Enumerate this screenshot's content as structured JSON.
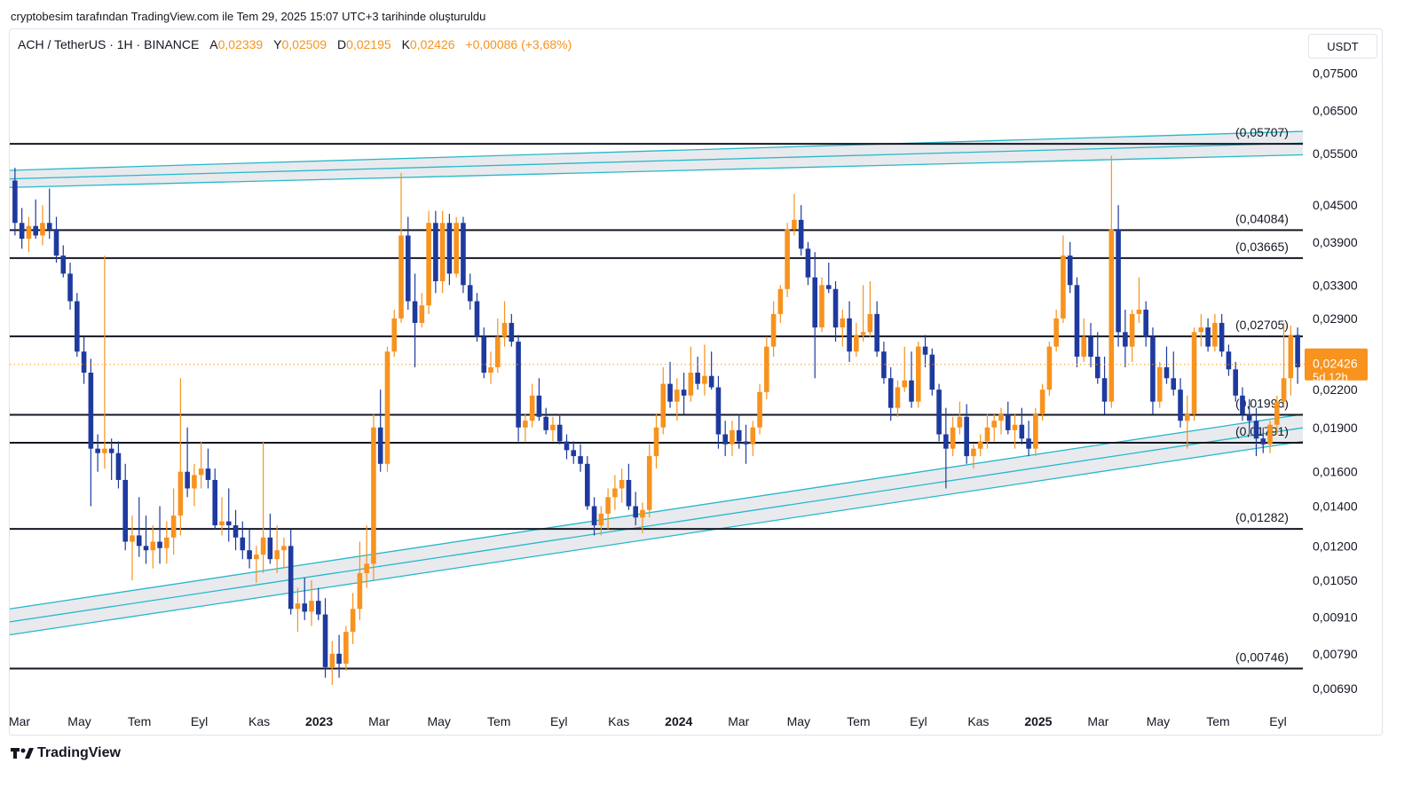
{
  "header": {
    "caption": "cryptobesim tarafından TradingView.com ile Tem 29, 2025 15:07 UTC+3 tarihinde oluşturuldu"
  },
  "legend": {
    "symbol": "ACH / TetherUS · 1H · BINANCE",
    "open_label": "A",
    "open": "0,02339",
    "high_label": "Y",
    "high": "0,02509",
    "low_label": "D",
    "low": "0,02195",
    "close_label": "K",
    "close": "0,02426",
    "change": "+0,00086 (+3,68%)"
  },
  "toolbar": {
    "currency": "USDT"
  },
  "brand": {
    "name": "TradingView"
  },
  "colors": {
    "bullish": "#f7931e",
    "bearish": "#1e3a9e",
    "channel": "#26b8c9",
    "channel_fill": "#e6e8ec",
    "level": "#131722",
    "last_price": "#f7931e"
  },
  "chart_data": {
    "type": "candlestick",
    "scale": "log",
    "ylim": [
      0.0064,
      0.089
    ],
    "y_ticks": [
      "0,07500",
      "0,06500",
      "0,05500",
      "0,04500",
      "0,03900",
      "0,03300",
      "0,02900",
      "0,02500",
      "0,02200",
      "0,01900",
      "0,01600",
      "0,01400",
      "0,01200",
      "0,01050",
      "0,00910",
      "0,00790",
      "0,00690"
    ],
    "y_values": [
      0.075,
      0.065,
      0.055,
      0.045,
      0.039,
      0.033,
      0.029,
      0.025,
      0.022,
      0.019,
      0.016,
      0.014,
      0.012,
      0.0105,
      0.0091,
      0.0079,
      0.0069
    ],
    "x_ticks": [
      {
        "label": "Mar",
        "bold": false
      },
      {
        "label": "May",
        "bold": false
      },
      {
        "label": "Tem",
        "bold": false
      },
      {
        "label": "Eyl",
        "bold": false
      },
      {
        "label": "Kas",
        "bold": false
      },
      {
        "label": "2023",
        "bold": true
      },
      {
        "label": "Mar",
        "bold": false
      },
      {
        "label": "May",
        "bold": false
      },
      {
        "label": "Tem",
        "bold": false
      },
      {
        "label": "Eyl",
        "bold": false
      },
      {
        "label": "Kas",
        "bold": false
      },
      {
        "label": "2024",
        "bold": true
      },
      {
        "label": "Mar",
        "bold": false
      },
      {
        "label": "May",
        "bold": false
      },
      {
        "label": "Tem",
        "bold": false
      },
      {
        "label": "Eyl",
        "bold": false
      },
      {
        "label": "Kas",
        "bold": false
      },
      {
        "label": "2025",
        "bold": true
      },
      {
        "label": "Mar",
        "bold": false
      },
      {
        "label": "May",
        "bold": false
      },
      {
        "label": "Tem",
        "bold": false
      },
      {
        "label": "Eyl",
        "bold": false
      }
    ],
    "levels": [
      {
        "label": "(0,05707)",
        "value": 0.05707
      },
      {
        "label": "(0,04084)",
        "value": 0.04084
      },
      {
        "label": "(0,03665)",
        "value": 0.03665
      },
      {
        "label": "(0,02705)",
        "value": 0.02705
      },
      {
        "label": "(0,01996)",
        "value": 0.01996
      },
      {
        "label": "(0,01791)",
        "value": 0.01791
      },
      {
        "label": "(0,01282)",
        "value": 0.01282
      },
      {
        "label": "(0,00746)",
        "value": 0.00746
      }
    ],
    "channels": [
      {
        "name": "upper",
        "start": [
          0.0482,
          0.0515
        ],
        "end": [
          0.0547,
          0.0599
        ]
      },
      {
        "name": "lower",
        "start": [
          0.0085,
          0.0094
        ],
        "end": [
          0.018,
          0.02
        ]
      }
    ],
    "last_price": {
      "value": 0.02426,
      "label": "0,02426",
      "countdown": "5d 12h"
    },
    "candles": [
      [
        0.0495,
        0.052,
        0.04,
        0.042
      ],
      [
        0.042,
        0.0445,
        0.038,
        0.0395
      ],
      [
        0.0395,
        0.043,
        0.0375,
        0.0415
      ],
      [
        0.0415,
        0.046,
        0.0395,
        0.04
      ],
      [
        0.04,
        0.045,
        0.0385,
        0.042
      ],
      [
        0.042,
        0.048,
        0.0395,
        0.041
      ],
      [
        0.041,
        0.043,
        0.036,
        0.037
      ],
      [
        0.037,
        0.0385,
        0.034,
        0.0345
      ],
      [
        0.0345,
        0.036,
        0.03,
        0.031
      ],
      [
        0.031,
        0.032,
        0.025,
        0.0255
      ],
      [
        0.0255,
        0.027,
        0.0225,
        0.0235
      ],
      [
        0.0235,
        0.0248,
        0.014,
        0.0175
      ],
      [
        0.0175,
        0.0185,
        0.016,
        0.0172
      ],
      [
        0.0172,
        0.037,
        0.0162,
        0.0175
      ],
      [
        0.0175,
        0.0182,
        0.0155,
        0.0172
      ],
      [
        0.0172,
        0.018,
        0.015,
        0.0155
      ],
      [
        0.0155,
        0.0165,
        0.0118,
        0.0122
      ],
      [
        0.0122,
        0.0135,
        0.0105,
        0.0125
      ],
      [
        0.0125,
        0.0145,
        0.0115,
        0.012
      ],
      [
        0.012,
        0.0135,
        0.0112,
        0.0118
      ],
      [
        0.0118,
        0.013,
        0.011,
        0.0122
      ],
      [
        0.0122,
        0.014,
        0.0112,
        0.0119
      ],
      [
        0.0119,
        0.0132,
        0.0112,
        0.0124
      ],
      [
        0.0124,
        0.015,
        0.0116,
        0.0135
      ],
      [
        0.0135,
        0.023,
        0.0125,
        0.016
      ],
      [
        0.016,
        0.019,
        0.0145,
        0.015
      ],
      [
        0.015,
        0.0165,
        0.014,
        0.0158
      ],
      [
        0.0158,
        0.018,
        0.015,
        0.0162
      ],
      [
        0.0162,
        0.0175,
        0.015,
        0.0155
      ],
      [
        0.0155,
        0.0162,
        0.0128,
        0.013
      ],
      [
        0.013,
        0.0145,
        0.0125,
        0.0132
      ],
      [
        0.0132,
        0.015,
        0.0122,
        0.013
      ],
      [
        0.013,
        0.0138,
        0.0118,
        0.0124
      ],
      [
        0.0124,
        0.0132,
        0.0114,
        0.0118
      ],
      [
        0.0118,
        0.0128,
        0.011,
        0.0114
      ],
      [
        0.0114,
        0.012,
        0.0104,
        0.0116
      ],
      [
        0.0116,
        0.018,
        0.0108,
        0.0124
      ],
      [
        0.0124,
        0.0136,
        0.0112,
        0.0114
      ],
      [
        0.0114,
        0.013,
        0.0108,
        0.0118
      ],
      [
        0.0118,
        0.0124,
        0.011,
        0.012
      ],
      [
        0.012,
        0.0128,
        0.0092,
        0.0094
      ],
      [
        0.0094,
        0.0102,
        0.0086,
        0.0096
      ],
      [
        0.0096,
        0.0106,
        0.009,
        0.0093
      ],
      [
        0.0093,
        0.0105,
        0.0088,
        0.0097
      ],
      [
        0.0097,
        0.0102,
        0.009,
        0.0092
      ],
      [
        0.0092,
        0.0098,
        0.0072,
        0.0075
      ],
      [
        0.0075,
        0.0083,
        0.007,
        0.0079
      ],
      [
        0.0079,
        0.0085,
        0.0072,
        0.0076
      ],
      [
        0.0076,
        0.0088,
        0.0074,
        0.0086
      ],
      [
        0.0086,
        0.01,
        0.0082,
        0.0094
      ],
      [
        0.0094,
        0.0122,
        0.009,
        0.0108
      ],
      [
        0.0108,
        0.013,
        0.0102,
        0.0112
      ],
      [
        0.0112,
        0.02,
        0.0105,
        0.019
      ],
      [
        0.019,
        0.022,
        0.016,
        0.0165
      ],
      [
        0.0165,
        0.026,
        0.016,
        0.0255
      ],
      [
        0.0255,
        0.03,
        0.025,
        0.029
      ],
      [
        0.029,
        0.051,
        0.0285,
        0.04
      ],
      [
        0.04,
        0.043,
        0.03,
        0.031
      ],
      [
        0.031,
        0.0345,
        0.024,
        0.0285
      ],
      [
        0.0285,
        0.032,
        0.028,
        0.0305
      ],
      [
        0.0305,
        0.044,
        0.0295,
        0.042
      ],
      [
        0.042,
        0.044,
        0.032,
        0.0335
      ],
      [
        0.0335,
        0.044,
        0.032,
        0.042
      ],
      [
        0.042,
        0.0435,
        0.033,
        0.0345
      ],
      [
        0.0345,
        0.043,
        0.034,
        0.042
      ],
      [
        0.042,
        0.043,
        0.032,
        0.033
      ],
      [
        0.033,
        0.0345,
        0.03,
        0.031
      ],
      [
        0.031,
        0.032,
        0.0265,
        0.027
      ],
      [
        0.027,
        0.028,
        0.023,
        0.0235
      ],
      [
        0.0235,
        0.0255,
        0.0225,
        0.024
      ],
      [
        0.024,
        0.029,
        0.0235,
        0.027
      ],
      [
        0.027,
        0.031,
        0.026,
        0.0285
      ],
      [
        0.0285,
        0.0295,
        0.026,
        0.0265
      ],
      [
        0.0265,
        0.0272,
        0.018,
        0.019
      ],
      [
        0.019,
        0.02,
        0.018,
        0.0195
      ],
      [
        0.0195,
        0.0225,
        0.019,
        0.0215
      ],
      [
        0.0215,
        0.023,
        0.0195,
        0.0198
      ],
      [
        0.0198,
        0.0205,
        0.0185,
        0.0188
      ],
      [
        0.0188,
        0.0198,
        0.018,
        0.0192
      ],
      [
        0.0192,
        0.02,
        0.0178,
        0.018
      ],
      [
        0.018,
        0.0185,
        0.0168,
        0.0174
      ],
      [
        0.0174,
        0.018,
        0.0165,
        0.017
      ],
      [
        0.017,
        0.0178,
        0.016,
        0.0165
      ],
      [
        0.0165,
        0.017,
        0.0138,
        0.014
      ],
      [
        0.014,
        0.0145,
        0.0125,
        0.013
      ],
      [
        0.013,
        0.014,
        0.0125,
        0.0136
      ],
      [
        0.0136,
        0.015,
        0.0128,
        0.0145
      ],
      [
        0.0145,
        0.0158,
        0.0138,
        0.015
      ],
      [
        0.015,
        0.0162,
        0.0142,
        0.0155
      ],
      [
        0.0155,
        0.0165,
        0.0138,
        0.014
      ],
      [
        0.014,
        0.0148,
        0.013,
        0.0134
      ],
      [
        0.0134,
        0.0142,
        0.0126,
        0.0138
      ],
      [
        0.0138,
        0.0178,
        0.0134,
        0.017
      ],
      [
        0.017,
        0.02,
        0.0162,
        0.019
      ],
      [
        0.019,
        0.024,
        0.0185,
        0.0225
      ],
      [
        0.0225,
        0.0245,
        0.0205,
        0.021
      ],
      [
        0.021,
        0.023,
        0.0195,
        0.022
      ],
      [
        0.022,
        0.0235,
        0.02,
        0.0215
      ],
      [
        0.0215,
        0.026,
        0.021,
        0.0235
      ],
      [
        0.0235,
        0.025,
        0.022,
        0.0225
      ],
      [
        0.0225,
        0.0262,
        0.0215,
        0.0232
      ],
      [
        0.0232,
        0.0255,
        0.022,
        0.0222
      ],
      [
        0.0222,
        0.0232,
        0.0175,
        0.0185
      ],
      [
        0.0185,
        0.0195,
        0.017,
        0.0178
      ],
      [
        0.0178,
        0.0195,
        0.017,
        0.0188
      ],
      [
        0.0188,
        0.02,
        0.0175,
        0.018
      ],
      [
        0.018,
        0.0192,
        0.0165,
        0.0178
      ],
      [
        0.0178,
        0.0195,
        0.017,
        0.019
      ],
      [
        0.019,
        0.0225,
        0.0185,
        0.0218
      ],
      [
        0.0218,
        0.027,
        0.0212,
        0.026
      ],
      [
        0.026,
        0.031,
        0.025,
        0.0295
      ],
      [
        0.0295,
        0.033,
        0.0285,
        0.0325
      ],
      [
        0.0325,
        0.042,
        0.0315,
        0.041
      ],
      [
        0.041,
        0.047,
        0.04,
        0.0425
      ],
      [
        0.0425,
        0.045,
        0.037,
        0.038
      ],
      [
        0.038,
        0.039,
        0.033,
        0.034
      ],
      [
        0.034,
        0.0375,
        0.023,
        0.028
      ],
      [
        0.028,
        0.034,
        0.0275,
        0.033
      ],
      [
        0.033,
        0.036,
        0.032,
        0.0325
      ],
      [
        0.0325,
        0.0335,
        0.0265,
        0.028
      ],
      [
        0.028,
        0.03,
        0.026,
        0.029
      ],
      [
        0.029,
        0.031,
        0.0245,
        0.0255
      ],
      [
        0.0255,
        0.0285,
        0.025,
        0.0272
      ],
      [
        0.0272,
        0.033,
        0.0265,
        0.0275
      ],
      [
        0.0275,
        0.0335,
        0.027,
        0.0295
      ],
      [
        0.0295,
        0.031,
        0.025,
        0.0255
      ],
      [
        0.0255,
        0.0265,
        0.0225,
        0.023
      ],
      [
        0.023,
        0.024,
        0.0195,
        0.0205
      ],
      [
        0.0205,
        0.0228,
        0.0198,
        0.0222
      ],
      [
        0.0222,
        0.026,
        0.0218,
        0.0228
      ],
      [
        0.0228,
        0.0255,
        0.0205,
        0.021
      ],
      [
        0.021,
        0.0265,
        0.0205,
        0.026
      ],
      [
        0.026,
        0.0272,
        0.024,
        0.0252
      ],
      [
        0.0252,
        0.0258,
        0.0215,
        0.022
      ],
      [
        0.022,
        0.0225,
        0.018,
        0.0185
      ],
      [
        0.0185,
        0.0205,
        0.015,
        0.0175
      ],
      [
        0.0175,
        0.0198,
        0.017,
        0.019
      ],
      [
        0.019,
        0.021,
        0.0185,
        0.0198
      ],
      [
        0.0198,
        0.0208,
        0.0165,
        0.017
      ],
      [
        0.017,
        0.0178,
        0.0162,
        0.0175
      ],
      [
        0.0175,
        0.0185,
        0.017,
        0.018
      ],
      [
        0.018,
        0.02,
        0.0175,
        0.019
      ],
      [
        0.019,
        0.02,
        0.018,
        0.0195
      ],
      [
        0.0195,
        0.0205,
        0.0185,
        0.02
      ],
      [
        0.02,
        0.021,
        0.0185,
        0.0188
      ],
      [
        0.0188,
        0.02,
        0.0175,
        0.0192
      ],
      [
        0.0192,
        0.0205,
        0.0178,
        0.0182
      ],
      [
        0.0182,
        0.0195,
        0.017,
        0.0175
      ],
      [
        0.0175,
        0.0205,
        0.017,
        0.02
      ],
      [
        0.02,
        0.0225,
        0.0195,
        0.022
      ],
      [
        0.022,
        0.0265,
        0.0215,
        0.026
      ],
      [
        0.026,
        0.03,
        0.0255,
        0.029
      ],
      [
        0.029,
        0.04,
        0.0285,
        0.037
      ],
      [
        0.037,
        0.039,
        0.032,
        0.033
      ],
      [
        0.033,
        0.034,
        0.024,
        0.025
      ],
      [
        0.025,
        0.029,
        0.0245,
        0.027
      ],
      [
        0.027,
        0.0285,
        0.024,
        0.025
      ],
      [
        0.025,
        0.0275,
        0.0225,
        0.023
      ],
      [
        0.023,
        0.025,
        0.02,
        0.021
      ],
      [
        0.021,
        0.0545,
        0.0205,
        0.041
      ],
      [
        0.041,
        0.045,
        0.026,
        0.0275
      ],
      [
        0.0275,
        0.03,
        0.024,
        0.026
      ],
      [
        0.026,
        0.03,
        0.0245,
        0.0295
      ],
      [
        0.0295,
        0.034,
        0.0285,
        0.03
      ],
      [
        0.03,
        0.031,
        0.026,
        0.027
      ],
      [
        0.027,
        0.028,
        0.02,
        0.021
      ],
      [
        0.021,
        0.0245,
        0.0205,
        0.024
      ],
      [
        0.024,
        0.026,
        0.0225,
        0.023
      ],
      [
        0.023,
        0.0255,
        0.0215,
        0.022
      ],
      [
        0.022,
        0.023,
        0.019,
        0.0195
      ],
      [
        0.0195,
        0.0215,
        0.0175,
        0.02
      ],
      [
        0.02,
        0.028,
        0.0195,
        0.0275
      ],
      [
        0.0275,
        0.0295,
        0.026,
        0.028
      ],
      [
        0.028,
        0.029,
        0.0255,
        0.026
      ],
      [
        0.026,
        0.0295,
        0.0255,
        0.0285
      ],
      [
        0.0285,
        0.0295,
        0.025,
        0.0255
      ],
      [
        0.0255,
        0.0262,
        0.0232,
        0.0238
      ],
      [
        0.0238,
        0.0245,
        0.021,
        0.0215
      ],
      [
        0.0215,
        0.0222,
        0.0195,
        0.02
      ],
      [
        0.02,
        0.0212,
        0.0185,
        0.0195
      ],
      [
        0.0195,
        0.0205,
        0.017,
        0.0182
      ],
      [
        0.0182,
        0.019,
        0.0172,
        0.0178
      ],
      [
        0.0178,
        0.0195,
        0.0172,
        0.0192
      ],
      [
        0.0192,
        0.0215,
        0.0185,
        0.021
      ],
      [
        0.021,
        0.0285,
        0.0205,
        0.023
      ],
      [
        0.023,
        0.0282,
        0.0215,
        0.0272
      ],
      [
        0.0272,
        0.028,
        0.0225,
        0.024
      ]
    ]
  }
}
